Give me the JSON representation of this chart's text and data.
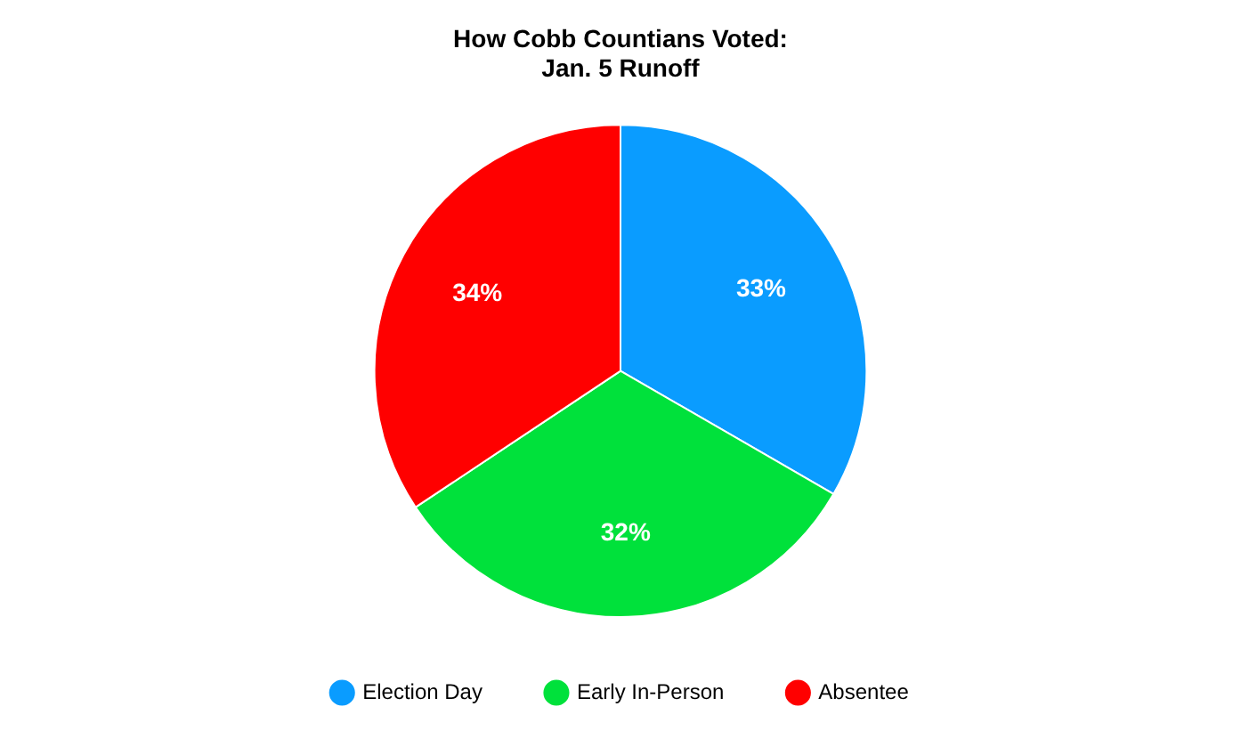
{
  "chart_data": {
    "type": "pie",
    "title": "How Cobb Countians Voted:\nJan. 5 Runoff",
    "categories": [
      "Election Day",
      "Early In-Person",
      "Absentee"
    ],
    "values": [
      33,
      32,
      34
    ],
    "colors": [
      "#0a9cff",
      "#00e13b",
      "#ff0000"
    ],
    "value_labels": [
      "33%",
      "32%",
      "34%"
    ],
    "legend": "bottom"
  }
}
